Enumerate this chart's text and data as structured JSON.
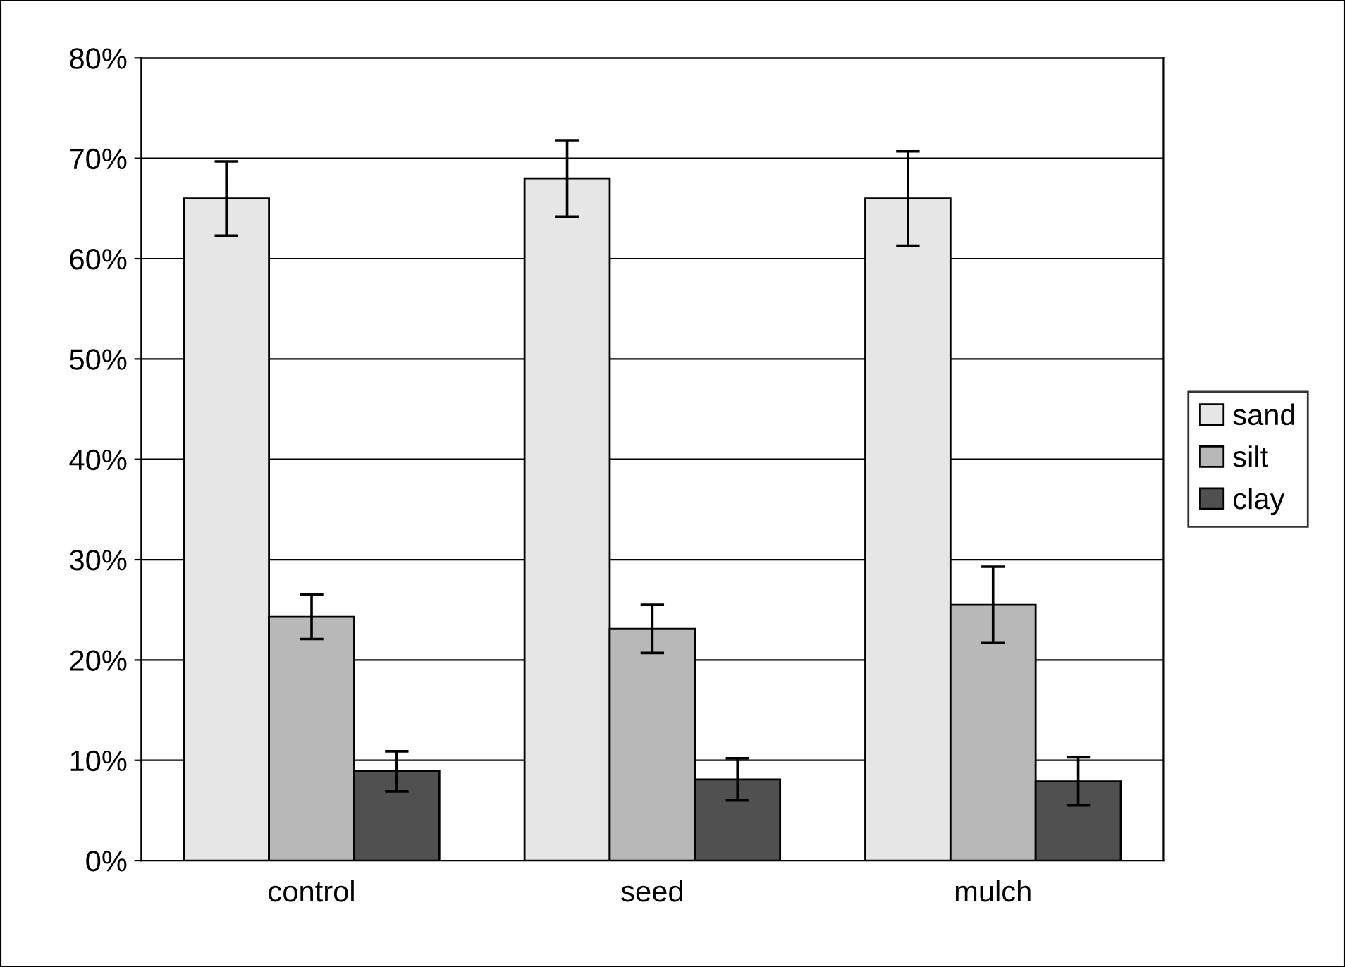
{
  "chart_data": {
    "type": "bar",
    "categories": [
      "control",
      "seed",
      "mulch"
    ],
    "series": [
      {
        "name": "sand",
        "color": "#e6e6e6",
        "values": [
          66,
          68,
          66
        ],
        "errors": [
          3.7,
          3.8,
          4.7
        ]
      },
      {
        "name": "silt",
        "color": "#b8b8b8",
        "values": [
          24.3,
          23.1,
          25.5
        ],
        "errors": [
          2.2,
          2.4,
          3.8
        ]
      },
      {
        "name": "clay",
        "color": "#505050",
        "values": [
          8.9,
          8.1,
          7.9
        ],
        "errors": [
          2.0,
          2.1,
          2.4
        ]
      }
    ],
    "ylim": [
      0,
      80
    ],
    "yticks": [
      {
        "value": 0,
        "label": "0%"
      },
      {
        "value": 10,
        "label": "10%"
      },
      {
        "value": 20,
        "label": "20%"
      },
      {
        "value": 30,
        "label": "30%"
      },
      {
        "value": 40,
        "label": "40%"
      },
      {
        "value": 50,
        "label": "50%"
      },
      {
        "value": 60,
        "label": "60%"
      },
      {
        "value": 70,
        "label": "70%"
      },
      {
        "value": 80,
        "label": "80%"
      }
    ],
    "grid": "y",
    "legend": "right"
  }
}
